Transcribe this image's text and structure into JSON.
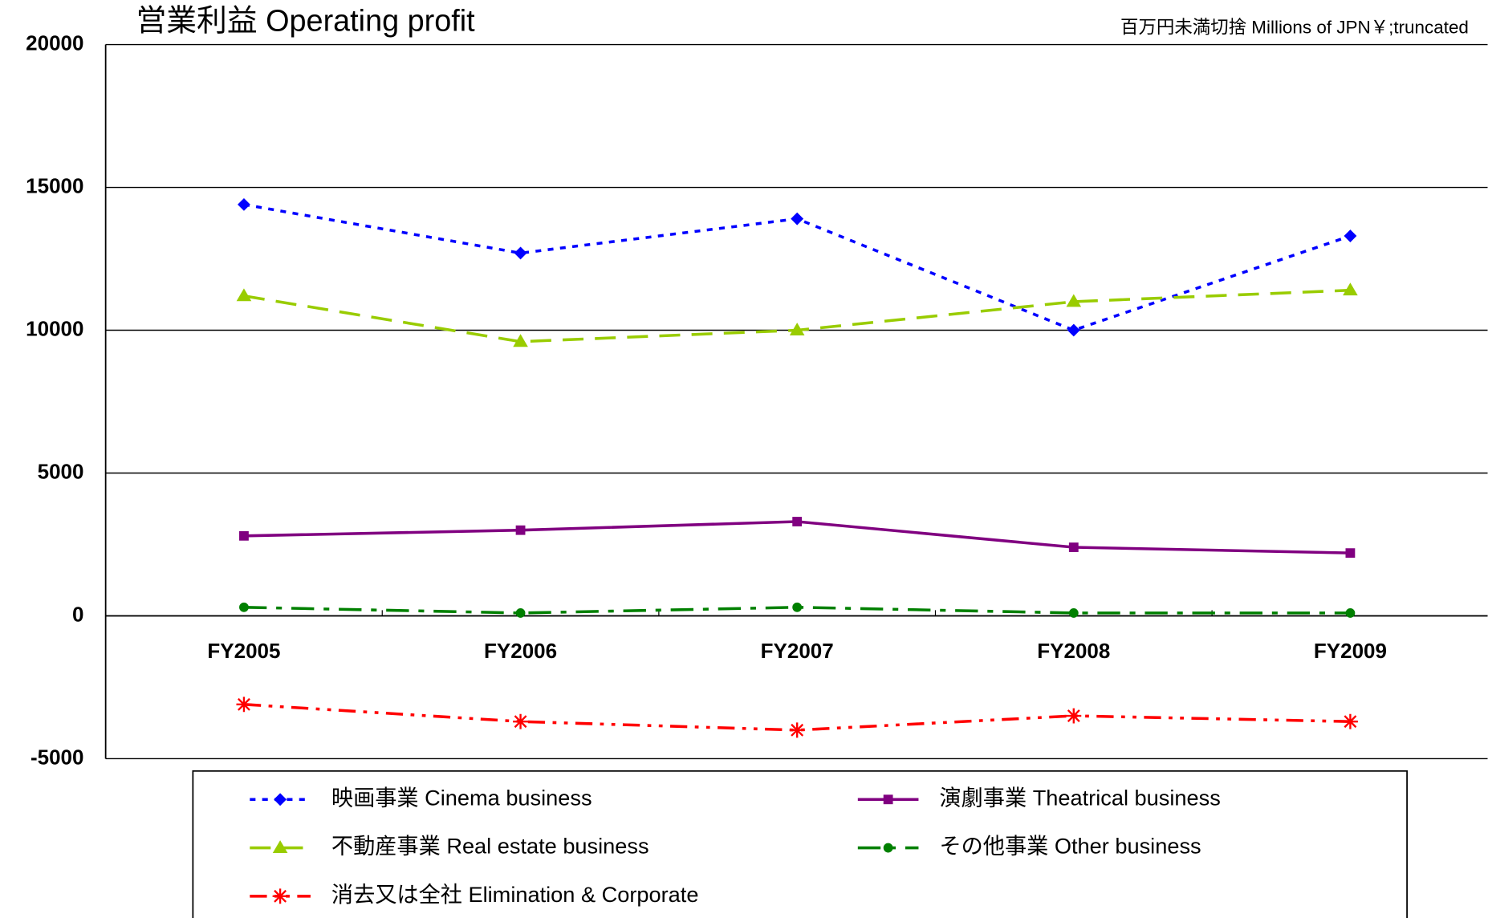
{
  "chart_data": {
    "type": "line",
    "title": "営業利益  Operating profit",
    "subtitle": "百万円未満切捨  Millions of JPN￥;truncated",
    "categories": [
      "FY2005",
      "FY2006",
      "FY2007",
      "FY2008",
      "FY2009"
    ],
    "series": [
      {
        "name": "映画事業 Cinema business",
        "color": "#0000ff",
        "values": [
          14400,
          12700,
          13900,
          10000,
          13300
        ]
      },
      {
        "name": "演劇事業 Theatrical business",
        "color": "#800080",
        "values": [
          2800,
          3000,
          3300,
          2400,
          2200
        ]
      },
      {
        "name": "不動産事業 Real estate business",
        "color": "#99cc00",
        "values": [
          11200,
          9600,
          10000,
          11000,
          11400
        ]
      },
      {
        "name": "その他事業 Other business",
        "color": "#008000",
        "values": [
          300,
          100,
          300,
          100,
          100
        ]
      },
      {
        "name": "消去又は全社 Elimination & Corporate",
        "color": "#ff0000",
        "values": [
          -3100,
          -3700,
          -4000,
          -3500,
          -3700
        ]
      }
    ],
    "ylim": [
      -5000,
      20000
    ],
    "yticks": [
      -5000,
      0,
      5000,
      10000,
      15000,
      20000
    ],
    "grid": true
  }
}
